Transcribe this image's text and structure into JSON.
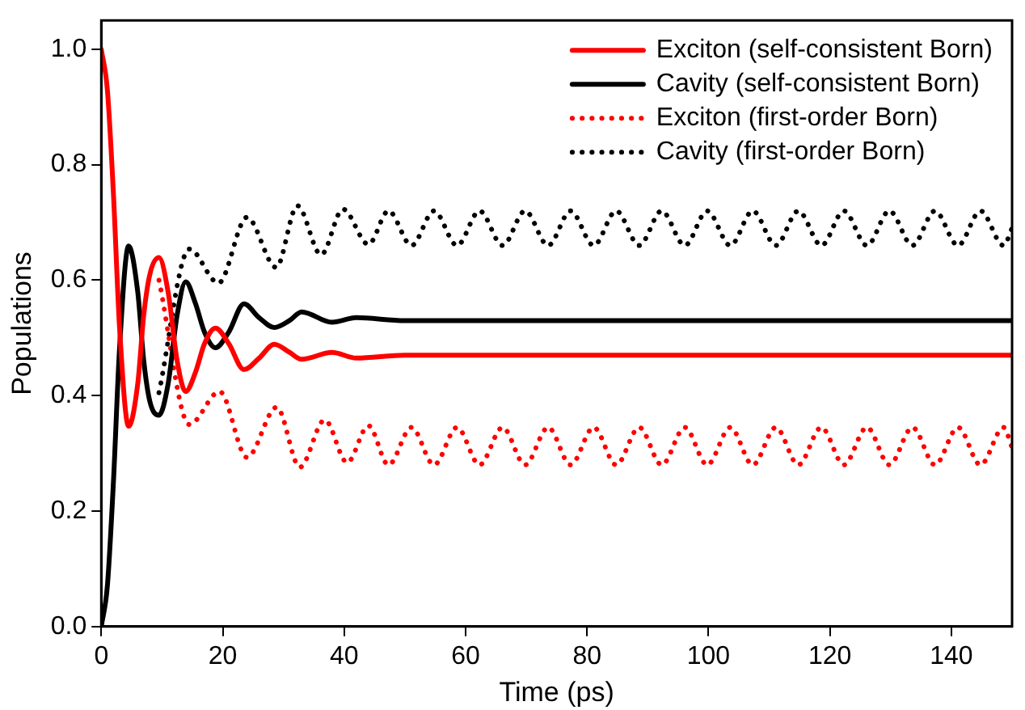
{
  "chart_data": {
    "type": "line",
    "xlabel": "Time (ps)",
    "ylabel": "Populations",
    "xlim": [
      0,
      150
    ],
    "xticks": [
      0,
      20,
      40,
      60,
      80,
      100,
      120,
      140
    ],
    "ylim": [
      0,
      1.05
    ],
    "yticks": [
      {
        "value": 0,
        "label": "0.0"
      },
      {
        "value": 0.2,
        "label": "0.2"
      },
      {
        "value": 0.4,
        "label": "0.4"
      },
      {
        "value": 0.6,
        "label": "0.6"
      },
      {
        "value": 0.8,
        "label": "0.8"
      },
      {
        "value": 1,
        "label": "1.0"
      }
    ],
    "grid": false,
    "legend": "top right",
    "series": [
      {
        "name": "Exciton (self-consistent Born)",
        "color": "#ff0000",
        "line_style": "solid",
        "x": [
          0,
          1,
          2,
          3,
          4.5,
          6,
          7,
          8,
          9.5,
          11,
          12.5,
          13.9,
          15.5,
          17,
          18.8,
          21,
          23.5,
          26,
          28.5,
          31,
          33,
          38,
          42,
          50,
          60,
          150
        ],
        "values": [
          1.0,
          0.93,
          0.75,
          0.52,
          0.347,
          0.42,
          0.54,
          0.61,
          0.639,
          0.58,
          0.46,
          0.407,
          0.44,
          0.49,
          0.517,
          0.49,
          0.445,
          0.465,
          0.489,
          0.475,
          0.463,
          0.475,
          0.465,
          0.47,
          0.47,
          0.47
        ]
      },
      {
        "name": "Cavity (self-consistent Born)",
        "color": "#000000",
        "line_style": "solid",
        "x": [
          0,
          1,
          2,
          3,
          4.5,
          6,
          7,
          8,
          9.5,
          11,
          12.5,
          13.9,
          15.5,
          17,
          18.8,
          21,
          23.5,
          26,
          28.5,
          31,
          33,
          38,
          42,
          50,
          60,
          150
        ],
        "values": [
          0,
          0.07,
          0.25,
          0.48,
          0.659,
          0.58,
          0.46,
          0.39,
          0.366,
          0.42,
          0.54,
          0.597,
          0.56,
          0.51,
          0.483,
          0.51,
          0.559,
          0.535,
          0.518,
          0.53,
          0.545,
          0.527,
          0.535,
          0.53,
          0.53,
          0.53
        ]
      },
      {
        "name": "Exciton (first-order Born)",
        "color": "#ff0000",
        "line_style": "dotted",
        "x": [
          9.5,
          14.5,
          19.5,
          24,
          28.9,
          32.7,
          36.8,
          40.5,
          44,
          47.3,
          51.1,
          54.8,
          58.6,
          62.3,
          66.1,
          69.8,
          73.6,
          77.3,
          81.1,
          84.8,
          88.6,
          92.3,
          96.1,
          99.8,
          103.6,
          107.3,
          111.1,
          114.8,
          118.6,
          122.3,
          126.1,
          129.8,
          133.6,
          137.3,
          141.1,
          144.8,
          148.6,
          150
        ],
        "values": [
          0.6,
          0.35,
          0.407,
          0.293,
          0.38,
          0.276,
          0.358,
          0.284,
          0.348,
          0.28,
          0.345,
          0.28,
          0.345,
          0.28,
          0.345,
          0.28,
          0.345,
          0.28,
          0.345,
          0.28,
          0.345,
          0.28,
          0.345,
          0.28,
          0.345,
          0.28,
          0.345,
          0.28,
          0.345,
          0.28,
          0.345,
          0.28,
          0.345,
          0.28,
          0.345,
          0.28,
          0.345,
          0.31
        ]
      },
      {
        "name": "Cavity (first-order Born)",
        "color": "#000000",
        "line_style": "dotted",
        "x": [
          9.5,
          14.5,
          19.3,
          24,
          28.8,
          32.3,
          36.2,
          39.8,
          44,
          47.3,
          51.1,
          54.8,
          58.6,
          62.3,
          66.1,
          69.8,
          73.6,
          77.3,
          81.1,
          84.8,
          88.6,
          92.3,
          96.1,
          99.8,
          103.6,
          107.3,
          111.1,
          114.8,
          118.6,
          122.3,
          126.1,
          129.8,
          133.6,
          137.3,
          141.1,
          144.8,
          148.6,
          150
        ],
        "values": [
          0.405,
          0.654,
          0.595,
          0.709,
          0.622,
          0.729,
          0.644,
          0.723,
          0.662,
          0.72,
          0.66,
          0.72,
          0.66,
          0.72,
          0.66,
          0.72,
          0.66,
          0.72,
          0.66,
          0.72,
          0.66,
          0.72,
          0.66,
          0.72,
          0.66,
          0.72,
          0.66,
          0.72,
          0.66,
          0.72,
          0.66,
          0.72,
          0.66,
          0.72,
          0.66,
          0.72,
          0.66,
          0.69
        ]
      }
    ]
  }
}
